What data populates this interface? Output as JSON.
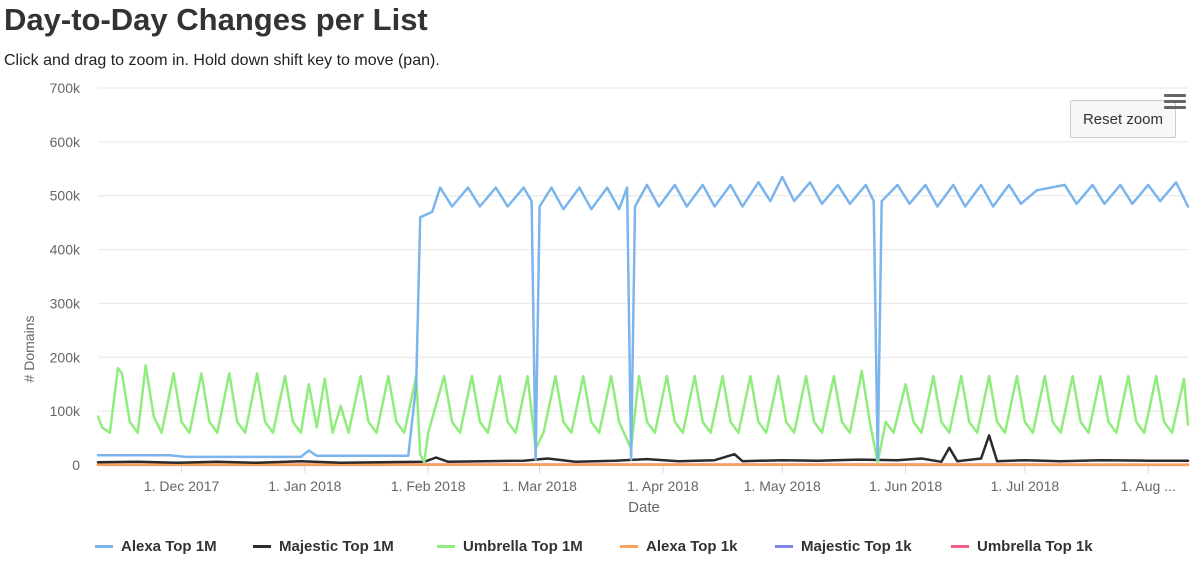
{
  "header": {
    "title": "Day-to-Day Changes per List",
    "subtitle": "Click and drag to zoom in. Hold down shift key to move (pan)."
  },
  "controls": {
    "reset_zoom_label": "Reset zoom",
    "menu_icon": "hamburger-menu-icon"
  },
  "chart_data": {
    "type": "line",
    "xlabel": "Date",
    "ylabel": "# Domains",
    "x_range": [
      "2017-11-10",
      "2018-08-11"
    ],
    "y_range": [
      0,
      700000
    ],
    "y_ticks": [
      0,
      100000,
      200000,
      300000,
      400000,
      500000,
      600000,
      700000
    ],
    "y_tick_labels": [
      "0",
      "100k",
      "200k",
      "300k",
      "400k",
      "500k",
      "600k",
      "700k"
    ],
    "x_ticks": [
      "2017-12-01",
      "2018-01-01",
      "2018-02-01",
      "2018-03-01",
      "2018-04-01",
      "2018-05-01",
      "2018-06-01",
      "2018-07-01",
      "2018-08-01"
    ],
    "x_tick_labels": [
      "1. Dec 2017",
      "1. Jan 2018",
      "1. Feb 2018",
      "1. Mar 2018",
      "1. Apr 2018",
      "1. May 2018",
      "1. Jun 2018",
      "1. Jul 2018",
      "1. Aug ..."
    ],
    "grid": "horizontal",
    "legend_position": "bottom",
    "series": [
      {
        "name": "Alexa Top 1M",
        "color": "#7cb5ec",
        "points": [
          [
            "2017-11-10",
            18000
          ],
          [
            "2017-11-28",
            18000
          ],
          [
            "2017-12-02",
            15000
          ],
          [
            "2017-12-31",
            15000
          ],
          [
            "2018-01-02",
            27000
          ],
          [
            "2018-01-04",
            17000
          ],
          [
            "2018-01-27",
            17000
          ],
          [
            "2018-01-29",
            150000
          ],
          [
            "2018-01-30",
            460000
          ],
          [
            "2018-02-02",
            470000
          ],
          [
            "2018-02-04",
            515000
          ],
          [
            "2018-02-07",
            480000
          ],
          [
            "2018-02-11",
            515000
          ],
          [
            "2018-02-14",
            480000
          ],
          [
            "2018-02-18",
            515000
          ],
          [
            "2018-02-21",
            480000
          ],
          [
            "2018-02-25",
            515000
          ],
          [
            "2018-02-27",
            490000
          ],
          [
            "2018-02-28",
            10000
          ],
          [
            "2018-03-01",
            480000
          ],
          [
            "2018-03-04",
            515000
          ],
          [
            "2018-03-07",
            475000
          ],
          [
            "2018-03-11",
            515000
          ],
          [
            "2018-03-14",
            475000
          ],
          [
            "2018-03-18",
            515000
          ],
          [
            "2018-03-21",
            475000
          ],
          [
            "2018-03-23",
            515000
          ],
          [
            "2018-03-24",
            10000
          ],
          [
            "2018-03-25",
            480000
          ],
          [
            "2018-03-28",
            520000
          ],
          [
            "2018-03-31",
            480000
          ],
          [
            "2018-04-04",
            520000
          ],
          [
            "2018-04-07",
            480000
          ],
          [
            "2018-04-11",
            520000
          ],
          [
            "2018-04-14",
            480000
          ],
          [
            "2018-04-18",
            520000
          ],
          [
            "2018-04-21",
            480000
          ],
          [
            "2018-04-25",
            525000
          ],
          [
            "2018-04-28",
            490000
          ],
          [
            "2018-05-01",
            535000
          ],
          [
            "2018-05-04",
            490000
          ],
          [
            "2018-05-08",
            525000
          ],
          [
            "2018-05-11",
            485000
          ],
          [
            "2018-05-15",
            520000
          ],
          [
            "2018-05-18",
            485000
          ],
          [
            "2018-05-22",
            520000
          ],
          [
            "2018-05-24",
            490000
          ],
          [
            "2018-05-25",
            10000
          ],
          [
            "2018-05-26",
            490000
          ],
          [
            "2018-05-30",
            520000
          ],
          [
            "2018-06-02",
            485000
          ],
          [
            "2018-06-06",
            520000
          ],
          [
            "2018-06-09",
            480000
          ],
          [
            "2018-06-13",
            520000
          ],
          [
            "2018-06-16",
            480000
          ],
          [
            "2018-06-20",
            520000
          ],
          [
            "2018-06-23",
            480000
          ],
          [
            "2018-06-27",
            520000
          ],
          [
            "2018-06-30",
            485000
          ],
          [
            "2018-07-04",
            510000
          ],
          [
            "2018-07-11",
            520000
          ],
          [
            "2018-07-14",
            485000
          ],
          [
            "2018-07-18",
            520000
          ],
          [
            "2018-07-21",
            485000
          ],
          [
            "2018-07-25",
            520000
          ],
          [
            "2018-07-28",
            485000
          ],
          [
            "2018-08-01",
            520000
          ],
          [
            "2018-08-04",
            490000
          ],
          [
            "2018-08-08",
            525000
          ],
          [
            "2018-08-11",
            480000
          ]
        ]
      },
      {
        "name": "Majestic Top 1M",
        "color": "#2b2b2b",
        "points": [
          [
            "2017-11-10",
            5000
          ],
          [
            "2017-11-20",
            6000
          ],
          [
            "2017-11-30",
            4000
          ],
          [
            "2017-12-10",
            6000
          ],
          [
            "2017-12-20",
            4000
          ],
          [
            "2017-12-31",
            7000
          ],
          [
            "2018-01-10",
            4000
          ],
          [
            "2018-01-20",
            5000
          ],
          [
            "2018-01-31",
            6000
          ],
          [
            "2018-02-03",
            14000
          ],
          [
            "2018-02-06",
            6000
          ],
          [
            "2018-02-15",
            7000
          ],
          [
            "2018-02-25",
            8000
          ],
          [
            "2018-03-03",
            12000
          ],
          [
            "2018-03-10",
            6000
          ],
          [
            "2018-03-20",
            8000
          ],
          [
            "2018-03-28",
            11000
          ],
          [
            "2018-04-05",
            7000
          ],
          [
            "2018-04-14",
            9000
          ],
          [
            "2018-04-19",
            20000
          ],
          [
            "2018-04-21",
            7000
          ],
          [
            "2018-05-01",
            9000
          ],
          [
            "2018-05-10",
            8000
          ],
          [
            "2018-05-20",
            10000
          ],
          [
            "2018-05-30",
            9000
          ],
          [
            "2018-06-05",
            12000
          ],
          [
            "2018-06-10",
            6000
          ],
          [
            "2018-06-12",
            32000
          ],
          [
            "2018-06-14",
            7000
          ],
          [
            "2018-06-20",
            12000
          ],
          [
            "2018-06-22",
            55000
          ],
          [
            "2018-06-24",
            7000
          ],
          [
            "2018-07-01",
            9000
          ],
          [
            "2018-07-10",
            7000
          ],
          [
            "2018-07-20",
            9000
          ],
          [
            "2018-08-01",
            8000
          ],
          [
            "2018-08-11",
            8000
          ]
        ]
      },
      {
        "name": "Umbrella Top 1M",
        "color": "#90ed7d",
        "points": [
          [
            "2017-11-10",
            90000
          ],
          [
            "2017-11-11",
            70000
          ],
          [
            "2017-11-13",
            60000
          ],
          [
            "2017-11-15",
            180000
          ],
          [
            "2017-11-16",
            170000
          ],
          [
            "2017-11-18",
            80000
          ],
          [
            "2017-11-20",
            60000
          ],
          [
            "2017-11-22",
            185000
          ],
          [
            "2017-11-24",
            90000
          ],
          [
            "2017-11-26",
            60000
          ],
          [
            "2017-11-29",
            170000
          ],
          [
            "2017-12-01",
            80000
          ],
          [
            "2017-12-03",
            60000
          ],
          [
            "2017-12-06",
            170000
          ],
          [
            "2017-12-08",
            80000
          ],
          [
            "2017-12-10",
            60000
          ],
          [
            "2017-12-13",
            170000
          ],
          [
            "2017-12-15",
            80000
          ],
          [
            "2017-12-17",
            60000
          ],
          [
            "2017-12-20",
            170000
          ],
          [
            "2017-12-22",
            80000
          ],
          [
            "2017-12-24",
            60000
          ],
          [
            "2017-12-27",
            165000
          ],
          [
            "2017-12-29",
            80000
          ],
          [
            "2017-12-31",
            60000
          ],
          [
            "2018-01-02",
            150000
          ],
          [
            "2018-01-04",
            70000
          ],
          [
            "2018-01-06",
            160000
          ],
          [
            "2018-01-08",
            60000
          ],
          [
            "2018-01-10",
            110000
          ],
          [
            "2018-01-12",
            60000
          ],
          [
            "2018-01-15",
            165000
          ],
          [
            "2018-01-17",
            80000
          ],
          [
            "2018-01-19",
            60000
          ],
          [
            "2018-01-22",
            165000
          ],
          [
            "2018-01-24",
            80000
          ],
          [
            "2018-01-26",
            60000
          ],
          [
            "2018-01-29",
            165000
          ],
          [
            "2018-01-30",
            20000
          ],
          [
            "2018-01-31",
            5000
          ],
          [
            "2018-02-01",
            60000
          ],
          [
            "2018-02-05",
            165000
          ],
          [
            "2018-02-07",
            80000
          ],
          [
            "2018-02-09",
            60000
          ],
          [
            "2018-02-12",
            165000
          ],
          [
            "2018-02-14",
            80000
          ],
          [
            "2018-02-16",
            60000
          ],
          [
            "2018-02-19",
            165000
          ],
          [
            "2018-02-21",
            80000
          ],
          [
            "2018-02-23",
            60000
          ],
          [
            "2018-02-26",
            165000
          ],
          [
            "2018-02-28",
            30000
          ],
          [
            "2018-03-02",
            60000
          ],
          [
            "2018-03-05",
            165000
          ],
          [
            "2018-03-07",
            80000
          ],
          [
            "2018-03-09",
            60000
          ],
          [
            "2018-03-12",
            165000
          ],
          [
            "2018-03-14",
            80000
          ],
          [
            "2018-03-16",
            60000
          ],
          [
            "2018-03-19",
            165000
          ],
          [
            "2018-03-21",
            80000
          ],
          [
            "2018-03-24",
            30000
          ],
          [
            "2018-03-26",
            165000
          ],
          [
            "2018-03-28",
            80000
          ],
          [
            "2018-03-30",
            60000
          ],
          [
            "2018-04-02",
            165000
          ],
          [
            "2018-04-04",
            80000
          ],
          [
            "2018-04-06",
            60000
          ],
          [
            "2018-04-09",
            165000
          ],
          [
            "2018-04-11",
            80000
          ],
          [
            "2018-04-13",
            60000
          ],
          [
            "2018-04-16",
            165000
          ],
          [
            "2018-04-18",
            80000
          ],
          [
            "2018-04-20",
            60000
          ],
          [
            "2018-04-23",
            165000
          ],
          [
            "2018-04-25",
            80000
          ],
          [
            "2018-04-27",
            60000
          ],
          [
            "2018-04-30",
            165000
          ],
          [
            "2018-05-02",
            80000
          ],
          [
            "2018-05-04",
            60000
          ],
          [
            "2018-05-07",
            165000
          ],
          [
            "2018-05-09",
            80000
          ],
          [
            "2018-05-11",
            60000
          ],
          [
            "2018-05-14",
            165000
          ],
          [
            "2018-05-16",
            80000
          ],
          [
            "2018-05-18",
            60000
          ],
          [
            "2018-05-21",
            175000
          ],
          [
            "2018-05-23",
            80000
          ],
          [
            "2018-05-25",
            5000
          ],
          [
            "2018-05-27",
            80000
          ],
          [
            "2018-05-29",
            60000
          ],
          [
            "2018-06-01",
            150000
          ],
          [
            "2018-06-03",
            80000
          ],
          [
            "2018-06-05",
            60000
          ],
          [
            "2018-06-08",
            165000
          ],
          [
            "2018-06-10",
            80000
          ],
          [
            "2018-06-12",
            60000
          ],
          [
            "2018-06-15",
            165000
          ],
          [
            "2018-06-17",
            80000
          ],
          [
            "2018-06-19",
            60000
          ],
          [
            "2018-06-22",
            165000
          ],
          [
            "2018-06-24",
            80000
          ],
          [
            "2018-06-26",
            60000
          ],
          [
            "2018-06-29",
            165000
          ],
          [
            "2018-07-01",
            80000
          ],
          [
            "2018-07-03",
            60000
          ],
          [
            "2018-07-06",
            165000
          ],
          [
            "2018-07-08",
            80000
          ],
          [
            "2018-07-10",
            60000
          ],
          [
            "2018-07-13",
            165000
          ],
          [
            "2018-07-15",
            80000
          ],
          [
            "2018-07-17",
            60000
          ],
          [
            "2018-07-20",
            165000
          ],
          [
            "2018-07-22",
            80000
          ],
          [
            "2018-07-24",
            60000
          ],
          [
            "2018-07-27",
            165000
          ],
          [
            "2018-07-29",
            80000
          ],
          [
            "2018-07-31",
            60000
          ],
          [
            "2018-08-03",
            165000
          ],
          [
            "2018-08-05",
            80000
          ],
          [
            "2018-08-07",
            60000
          ],
          [
            "2018-08-10",
            160000
          ],
          [
            "2018-08-11",
            75000
          ]
        ]
      },
      {
        "name": "Alexa Top 1k",
        "color": "#f7a35c",
        "points": [
          [
            "2017-11-10",
            400
          ],
          [
            "2018-02-01",
            500
          ],
          [
            "2018-05-01",
            500
          ],
          [
            "2018-08-11",
            400
          ]
        ]
      },
      {
        "name": "Majestic Top 1k",
        "color": "#8085e9",
        "points": [
          [
            "2017-11-10",
            200
          ],
          [
            "2018-02-01",
            300
          ],
          [
            "2018-05-01",
            300
          ],
          [
            "2018-08-11",
            200
          ]
        ]
      },
      {
        "name": "Umbrella Top 1k",
        "color": "#f15c80",
        "points": [
          [
            "2017-11-10",
            800
          ],
          [
            "2018-02-01",
            900
          ],
          [
            "2018-05-01",
            900
          ],
          [
            "2018-08-11",
            800
          ]
        ]
      }
    ]
  }
}
